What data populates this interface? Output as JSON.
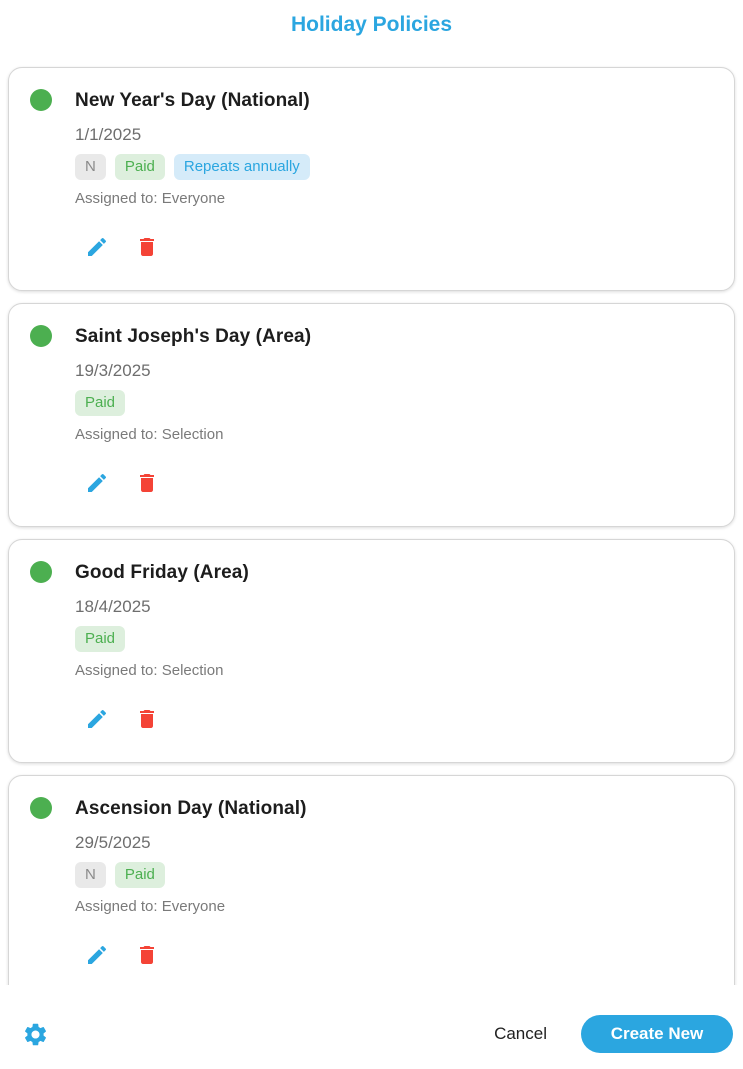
{
  "page": {
    "title": "Holiday Policies"
  },
  "colors": {
    "accent_blue": "#2ba6e0",
    "status_green": "#4caf50",
    "delete_red": "#f44336",
    "badge_gray_bg": "#e9e9e9",
    "badge_gray_text": "#8a8a8a",
    "badge_green_bg": "#ddefdd",
    "badge_green_text": "#4caf50",
    "badge_blue_bg": "#d5ebf9",
    "badge_blue_text": "#2ba6e0"
  },
  "icons": {
    "status": "green-circle-icon",
    "edit": "pencil-icon",
    "delete": "trash-icon",
    "settings": "gear-icon"
  },
  "policies": [
    {
      "name": "New Year's Day (National)",
      "date": "1/1/2025",
      "badges": [
        {
          "label": "N",
          "type": "gray"
        },
        {
          "label": "Paid",
          "type": "green"
        },
        {
          "label": "Repeats annually",
          "type": "blue"
        }
      ],
      "assigned_to": "Assigned to: Everyone"
    },
    {
      "name": "Saint Joseph's Day (Area)",
      "date": "19/3/2025",
      "badges": [
        {
          "label": "Paid",
          "type": "green"
        }
      ],
      "assigned_to": "Assigned to: Selection"
    },
    {
      "name": "Good Friday (Area)",
      "date": "18/4/2025",
      "badges": [
        {
          "label": "Paid",
          "type": "green"
        }
      ],
      "assigned_to": "Assigned to: Selection"
    },
    {
      "name": "Ascension Day (National)",
      "date": "29/5/2025",
      "badges": [
        {
          "label": "N",
          "type": "gray"
        },
        {
          "label": "Paid",
          "type": "green"
        }
      ],
      "assigned_to": "Assigned to: Everyone"
    }
  ],
  "footer": {
    "cancel_label": "Cancel",
    "create_label": "Create New"
  }
}
